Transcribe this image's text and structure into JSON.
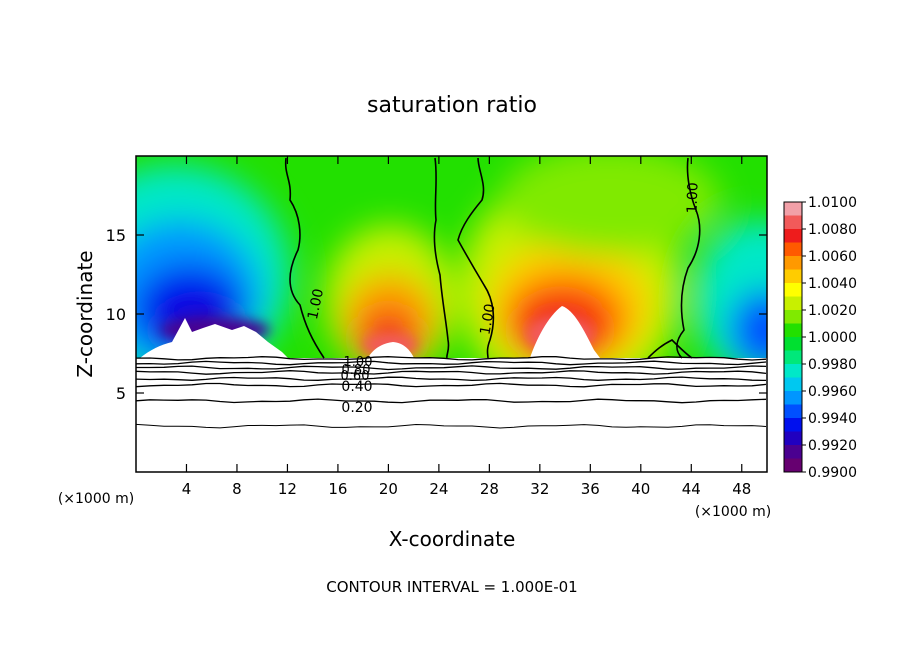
{
  "chart_data": {
    "type": "heatmap",
    "title": "saturation ratio",
    "xlabel": "X-coordinate",
    "ylabel": "Z-coordinate",
    "x_unit_left": "(×1000 m)",
    "x_unit_right": "(×1000 m)",
    "footer": "CONTOUR INTERVAL = 1.000E-01",
    "xlim": [
      0,
      50
    ],
    "ylim": [
      0,
      20
    ],
    "x_ticks": [
      4,
      8,
      12,
      16,
      20,
      24,
      28,
      32,
      36,
      40,
      44,
      48
    ],
    "x_tick_labels": [
      "4",
      "8",
      "12",
      "16",
      "20",
      "24",
      "28",
      "32",
      "36",
      "40",
      "44",
      "48"
    ],
    "y_ticks": [
      5,
      10,
      15
    ],
    "y_tick_labels": [
      "5",
      "10",
      "15"
    ],
    "colorbar": {
      "range": [
        0.99,
        1.01
      ],
      "labels": [
        "1.0100",
        "1.0080",
        "1.0060",
        "1.0040",
        "1.0020",
        "1.0000",
        "0.9980",
        "0.9960",
        "0.9940",
        "0.9920",
        "0.9900"
      ],
      "colors": [
        "#f2a0a8",
        "#f25a5a",
        "#ee1c1c",
        "#ff5a00",
        "#ff9900",
        "#ffcc00",
        "#ffff00",
        "#c8f000",
        "#80ea00",
        "#22e000",
        "#00e030",
        "#00e87a",
        "#00e8c8",
        "#00c8f0",
        "#0096ff",
        "#0050ff",
        "#0010ee",
        "#2000c0",
        "#4a0090",
        "#660070"
      ]
    },
    "contour_labels": [
      "1.00",
      "1.00",
      "1.00",
      "1.00",
      "0.80",
      "0.60",
      "0.40",
      "0.20"
    ],
    "lower_contour_z": [
      7.2,
      6.9,
      6.6,
      6.3,
      5.9,
      5.5,
      4.5,
      2.9
    ],
    "cloud_features": [
      {
        "kind": "dry-low",
        "x": 6,
        "z": 12
      },
      {
        "kind": "moist-high",
        "x": 20,
        "z": 8.3
      },
      {
        "kind": "moist-high",
        "x": 34,
        "z": 9.5
      },
      {
        "kind": "dry-low",
        "x": 48,
        "z": 10.5
      }
    ]
  }
}
